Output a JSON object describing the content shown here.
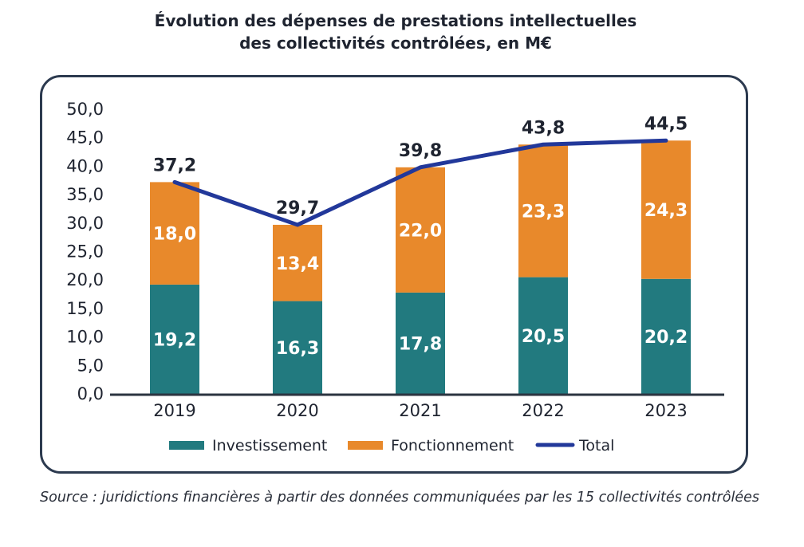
{
  "chart_data": {
    "type": "bar",
    "stacked": true,
    "title": "Évolution des dépenses de prestations intellectuelles des collectivités contrôlées, en M€",
    "title_lines": [
      "Évolution des dépenses de prestations intellectuelles",
      "des collectivités contrôlées, en M€"
    ],
    "categories": [
      "2019",
      "2020",
      "2021",
      "2022",
      "2023"
    ],
    "series": [
      {
        "name": "Investissement",
        "type": "bar",
        "color": "#227a7f",
        "values": [
          19.2,
          16.3,
          17.8,
          20.5,
          20.2
        ],
        "labels": [
          "19,2",
          "16,3",
          "17,8",
          "20,5",
          "20,2"
        ]
      },
      {
        "name": "Fonctionnement",
        "type": "bar",
        "color": "#e8892b",
        "values": [
          18.0,
          13.4,
          22.0,
          23.3,
          24.3
        ],
        "labels": [
          "18,0",
          "13,4",
          "22,0",
          "23,3",
          "24,3"
        ]
      },
      {
        "name": "Total",
        "type": "line",
        "color": "#22389a",
        "values": [
          37.2,
          29.7,
          39.8,
          43.8,
          44.5
        ],
        "labels": [
          "37,2",
          "29,7",
          "39,8",
          "43,8",
          "44,5"
        ]
      }
    ],
    "ylim": [
      0,
      50
    ],
    "yticks": [
      "0,0",
      "5,0",
      "10,0",
      "15,0",
      "20,0",
      "25,0",
      "30,0",
      "35,0",
      "40,0",
      "45,0",
      "50,0"
    ],
    "xlabel": "",
    "ylabel": "",
    "grid": false,
    "legend_position": "bottom"
  },
  "source": "Source : juridictions financières à partir des données communiquées par les 15 collectivités contrôlées"
}
